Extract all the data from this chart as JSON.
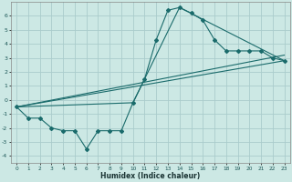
{
  "xlabel": "Humidex (Indice chaleur)",
  "ylabel": "",
  "bg_color": "#cce8e4",
  "grid_color": "#aacccc",
  "line_color": "#1a6b6b",
  "xlim": [
    -0.5,
    23.5
  ],
  "ylim": [
    -4.5,
    7.0
  ],
  "xticks": [
    0,
    1,
    2,
    3,
    4,
    5,
    6,
    7,
    8,
    9,
    10,
    11,
    12,
    13,
    14,
    15,
    16,
    17,
    18,
    19,
    20,
    21,
    22,
    23
  ],
  "yticks": [
    -4,
    -3,
    -2,
    -1,
    0,
    1,
    2,
    3,
    4,
    5,
    6
  ],
  "series1_x": [
    0,
    1,
    2,
    3,
    4,
    5,
    6,
    7,
    8,
    9,
    10,
    11,
    12,
    13,
    14,
    15,
    16,
    17,
    18,
    19,
    20,
    21,
    22,
    23
  ],
  "series1_y": [
    -0.5,
    -1.3,
    -1.3,
    -2.0,
    -2.2,
    -2.2,
    -3.5,
    -2.2,
    -2.2,
    -2.2,
    -0.2,
    1.5,
    4.3,
    6.4,
    6.6,
    6.2,
    5.7,
    4.3,
    3.5,
    3.5,
    3.5,
    3.5,
    3.0,
    2.8
  ],
  "series2_x": [
    0,
    23
  ],
  "series2_y": [
    -0.5,
    3.2
  ],
  "series3_x": [
    0,
    23
  ],
  "series3_y": [
    -0.5,
    2.8
  ],
  "series4_x": [
    0,
    10,
    14,
    23
  ],
  "series4_y": [
    -0.5,
    -0.2,
    6.6,
    2.8
  ]
}
